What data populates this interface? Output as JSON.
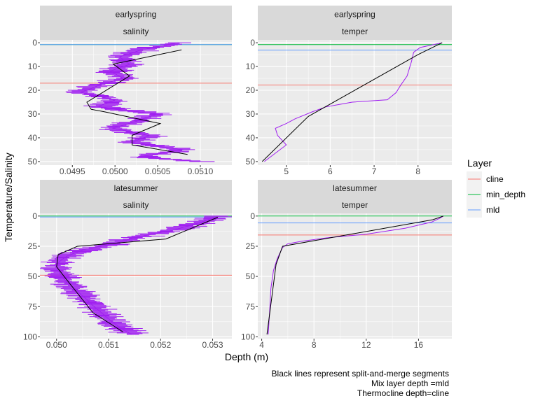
{
  "y_axis_label": "Temperature/Salinity",
  "x_axis_label": "Depth (m)",
  "legend": {
    "title": "Layer",
    "items": [
      {
        "label": "cline",
        "color": "#F8766D"
      },
      {
        "label": "min_depth",
        "color": "#00BA38"
      },
      {
        "label": "mld",
        "color": "#619CFF"
      }
    ]
  },
  "caption": {
    "lines": [
      "Black lines represent split-and-merge segments",
      "Mix layer depth =mld",
      "Thermocline depth=cline"
    ]
  },
  "colors": {
    "profile": "#A020F0",
    "segments": "#000000",
    "panel_background": "#EBEBEB",
    "strip_background": "#D9D9D9"
  },
  "chart_data": [
    {
      "type": "line",
      "strip_top": "earlyspring",
      "strip_bottom": "salinity",
      "x_ticks": [
        "0.0495",
        "0.0500",
        "0.0505",
        "0.0510"
      ],
      "x_tick_values": [
        0.0495,
        0.05,
        0.0505,
        0.051
      ],
      "xlim": [
        0.04912,
        0.05137
      ],
      "y_ticks": [
        "0",
        "10",
        "20",
        "30",
        "40",
        "50"
      ],
      "y_tick_values": [
        0,
        10,
        20,
        30,
        40,
        50
      ],
      "ylim": [
        51.5,
        -1.2
      ],
      "y_reversed": true,
      "hlines": [
        {
          "layer": "cline",
          "value": 17
        },
        {
          "layer": "min_depth",
          "value": 0.8
        },
        {
          "layer": "mld",
          "value": 0.8
        }
      ],
      "profile": {
        "x": [
          0.05075,
          0.0503,
          0.05005,
          0.05017,
          0.04995,
          0.0501,
          0.0498,
          0.0496,
          0.05,
          0.0498,
          0.0505,
          0.05025,
          0.04997,
          0.0504,
          0.0502,
          0.0508,
          0.0503,
          0.051
        ],
        "y": [
          0,
          3,
          6,
          9,
          12,
          15,
          18,
          21,
          24,
          27,
          30,
          33,
          36,
          39,
          42,
          45,
          48,
          50
        ]
      },
      "segments": {
        "x": [
          0.05078,
          0.04998,
          0.05017,
          0.04967,
          0.04972,
          0.04987,
          0.05053,
          0.0502,
          0.0502,
          0.05085
        ],
        "y": [
          3,
          9,
          14,
          25,
          28,
          29,
          34,
          39,
          43,
          47
        ]
      }
    },
    {
      "type": "line",
      "strip_top": "earlyspring",
      "strip_bottom": "temper",
      "x_ticks": [
        "5",
        "6",
        "7",
        "8"
      ],
      "x_tick_values": [
        5,
        6,
        7,
        8
      ],
      "xlim": [
        4.35,
        8.77
      ],
      "y_ticks": [
        "0",
        "10",
        "20",
        "30",
        "40",
        "50"
      ],
      "y_tick_values": [
        0,
        10,
        20,
        30,
        40,
        50
      ],
      "ylim": [
        51.5,
        -1.2
      ],
      "y_reversed": true,
      "hlines": [
        {
          "layer": "cline",
          "value": 17.8
        },
        {
          "layer": "min_depth",
          "value": 0.8
        },
        {
          "layer": "mld",
          "value": 3.1
        }
      ],
      "profile": {
        "x": [
          8.55,
          8.3,
          8.05,
          7.9,
          7.85,
          7.75,
          7.6,
          7.5,
          7.3,
          6.5,
          6.2,
          5.9,
          5.6,
          5.2,
          5.0,
          4.75,
          4.8,
          5.0,
          4.5
        ],
        "y": [
          0,
          1,
          2,
          4,
          8,
          14,
          18,
          21,
          24,
          25,
          26,
          27,
          29,
          32,
          34,
          36,
          39,
          43,
          50
        ]
      },
      "segments": {
        "x": [
          8.55,
          8.0,
          5.5,
          4.45
        ],
        "y": [
          0,
          5,
          31,
          50
        ]
      }
    },
    {
      "type": "line",
      "strip_top": "latesummer",
      "strip_bottom": "salinity",
      "x_ticks": [
        "0.050",
        "0.051",
        "0.052",
        "0.053"
      ],
      "x_tick_values": [
        0.05,
        0.051,
        0.052,
        0.053
      ],
      "xlim": [
        0.04968,
        0.05337
      ],
      "y_ticks": [
        "0",
        "25",
        "50",
        "75",
        "100"
      ],
      "y_tick_values": [
        0,
        25,
        50,
        75,
        100
      ],
      "ylim": [
        101.5,
        -2.2
      ],
      "y_reversed": true,
      "hlines": [
        {
          "layer": "cline",
          "value": 49
        },
        {
          "layer": "min_depth",
          "value": 0
        },
        {
          "layer": "mld",
          "value": 0.8
        }
      ],
      "profile": {
        "x": [
          0.0531,
          0.0528,
          0.0522,
          0.0515,
          0.051,
          0.0505,
          0.0502,
          0.05005,
          0.05,
          0.05007,
          0.0502,
          0.0504,
          0.0506,
          0.0508,
          0.051,
          0.0512,
          0.05145
        ],
        "y": [
          0,
          5,
          12,
          18,
          24,
          28,
          33,
          38,
          42,
          48,
          55,
          62,
          70,
          78,
          85,
          92,
          98
        ]
      },
      "segments": {
        "x": [
          0.0531,
          0.0521,
          0.0504,
          0.05003,
          0.05,
          0.0502,
          0.0507,
          0.05128
        ],
        "y": [
          1,
          19,
          25,
          32,
          42,
          53,
          80,
          96
        ]
      }
    },
    {
      "type": "line",
      "strip_top": "latesummer",
      "strip_bottom": "temper",
      "x_ticks": [
        "4",
        "8",
        "12",
        "16"
      ],
      "x_tick_values": [
        4,
        8,
        12,
        16
      ],
      "xlim": [
        3.7,
        18.55
      ],
      "y_ticks": [
        "0",
        "25",
        "50",
        "75",
        "100"
      ],
      "y_tick_values": [
        0,
        25,
        50,
        75,
        100
      ],
      "ylim": [
        101.5,
        -2.2
      ],
      "y_reversed": true,
      "hlines": [
        {
          "layer": "cline",
          "value": 15.7
        },
        {
          "layer": "min_depth",
          "value": 0
        },
        {
          "layer": "mld",
          "value": 5.7
        }
      ],
      "profile": {
        "x": [
          17.9,
          17.6,
          17.0,
          15.0,
          12.0,
          9.0,
          7.0,
          6.0,
          5.6,
          5.2,
          4.9,
          4.7,
          4.6,
          4.5
        ],
        "y": [
          0,
          2,
          5,
          10,
          15,
          18,
          21,
          23,
          26,
          35,
          45,
          60,
          80,
          98
        ]
      },
      "segments": {
        "x": [
          17.9,
          17.1,
          5.6,
          5.1,
          4.4
        ],
        "y": [
          0,
          3,
          25,
          40,
          98
        ]
      }
    }
  ]
}
